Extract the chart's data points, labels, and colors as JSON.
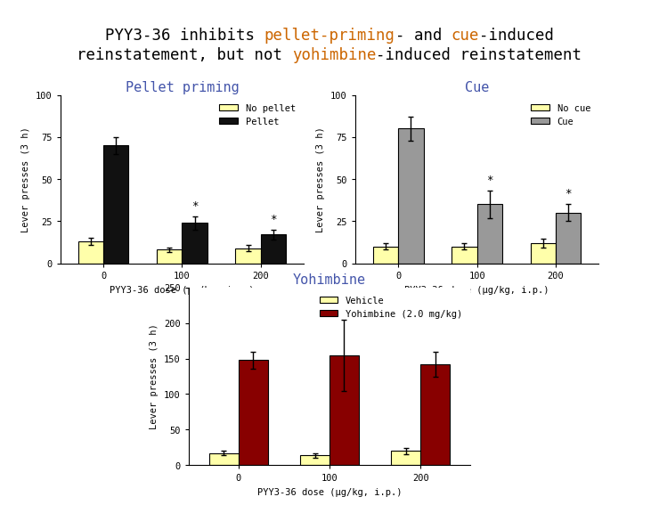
{
  "title_line1_parts": [
    {
      "text": "PYY3-36 inhibits ",
      "color": "#000000"
    },
    {
      "text": "pellet-priming",
      "color": "#CC6600"
    },
    {
      "text": "- and ",
      "color": "#000000"
    },
    {
      "text": "cue",
      "color": "#CC6600"
    },
    {
      "text": "-induced",
      "color": "#000000"
    }
  ],
  "title_line2_parts": [
    {
      "text": "reinstatement, but not ",
      "color": "#000000"
    },
    {
      "text": "yohimbine",
      "color": "#CC6600"
    },
    {
      "text": "-induced reinstatement",
      "color": "#000000"
    }
  ],
  "title_fontsize": 12.5,
  "pellet_title": "Pellet priming",
  "pellet_doses": [
    0,
    100,
    200
  ],
  "pellet_no_pellet_means": [
    13,
    8,
    9
  ],
  "pellet_no_pellet_errs": [
    2,
    1.5,
    2
  ],
  "pellet_pellet_means": [
    70,
    24,
    17
  ],
  "pellet_pellet_errs": [
    5,
    4,
    3
  ],
  "pellet_color_nopellet": "#FFFFAA",
  "pellet_color_pellet": "#111111",
  "pellet_ylim": [
    0,
    100
  ],
  "pellet_yticks": [
    0,
    25,
    50,
    75,
    100
  ],
  "pellet_ylabel": "Lever presses (3 h)",
  "pellet_xlabel": "PYY3-36 dose (μg/kg, i.p.)",
  "cue_title": "Cue",
  "cue_doses": [
    0,
    100,
    200
  ],
  "cue_no_cue_means": [
    10,
    10,
    12
  ],
  "cue_no_cue_errs": [
    2,
    2,
    2.5
  ],
  "cue_cue_means": [
    80,
    35,
    30
  ],
  "cue_cue_errs": [
    7,
    8,
    5
  ],
  "cue_color_nocue": "#FFFFAA",
  "cue_color_cue": "#999999",
  "cue_ylim": [
    0,
    100
  ],
  "cue_yticks": [
    0,
    25,
    50,
    75,
    100
  ],
  "cue_ylabel": "Lever presses (3 h)",
  "cue_xlabel": "PYY3-36 dose (μg/kg, i.p.)",
  "yohimbine_title": "Yohimbine",
  "yohimbine_doses": [
    0,
    100,
    200
  ],
  "yohimbine_vehicle_means": [
    17,
    14,
    20
  ],
  "yohimbine_vehicle_errs": [
    3,
    3,
    4
  ],
  "yohimbine_yohimbine_means": [
    148,
    155,
    142
  ],
  "yohimbine_yohimbine_errs": [
    12,
    50,
    18
  ],
  "yohimbine_color_vehicle": "#FFFFAA",
  "yohimbine_color_yohimbine": "#880000",
  "yohimbine_ylim": [
    0,
    250
  ],
  "yohimbine_yticks": [
    0,
    50,
    100,
    150,
    200,
    250
  ],
  "yohimbine_ylabel": "Lever presses (3 h)",
  "yohimbine_xlabel": "PYY3-36 dose (μg/kg, i.p.)",
  "bar_width": 0.32,
  "subplot_title_fontsize": 11,
  "subplot_title_color": "#4455AA",
  "axis_label_fontsize": 7.5,
  "tick_fontsize": 7.5,
  "legend_fontsize": 7.5
}
